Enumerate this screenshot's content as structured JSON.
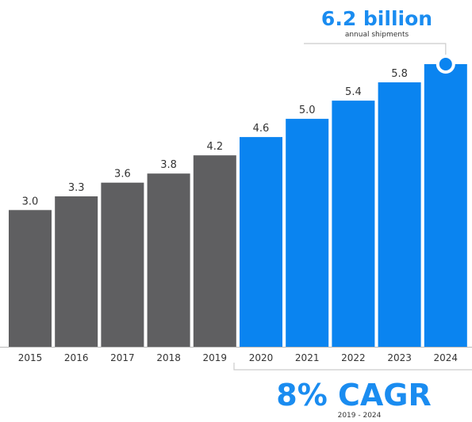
{
  "chart_data": {
    "type": "bar",
    "categories": [
      "2015",
      "2016",
      "2017",
      "2018",
      "2019",
      "2020",
      "2021",
      "2022",
      "2023",
      "2024"
    ],
    "values": [
      3.0,
      3.3,
      3.6,
      3.8,
      4.2,
      4.6,
      5.0,
      5.4,
      5.8,
      6.2
    ],
    "value_labels": [
      "3.0",
      "3.3",
      "3.6",
      "3.8",
      "4.2",
      "4.6",
      "5.0",
      "5.4",
      "5.8",
      ""
    ],
    "ylim": [
      0,
      6.2
    ],
    "grid": false,
    "colors": {
      "historical": "#5f5f61",
      "forecast": "#0a84f0",
      "accent": "#1a8cf0",
      "text": "#333333",
      "lines": "#cccccc"
    },
    "historical_count": 5,
    "callout": {
      "value": "6.2 billion",
      "subtitle": "annual shipments"
    },
    "cagr": {
      "value": "8% CAGR",
      "range": "2019 - 2024"
    }
  }
}
